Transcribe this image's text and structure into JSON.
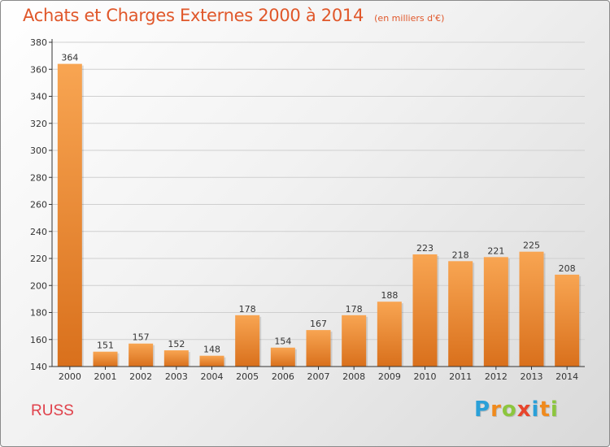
{
  "header": {
    "title": "Achats et Charges Externes 2000 à 2014",
    "subtitle": "(en milliers d'€)"
  },
  "commune": "RUSS",
  "brand": {
    "letters": [
      "P",
      "r",
      "o",
      "x",
      "i",
      "t",
      "i"
    ],
    "colors": [
      "#2aa0d8",
      "#f08a1c",
      "#8cc63e",
      "#e8452c",
      "#2aa0d8",
      "#f08a1c",
      "#8cc63e"
    ]
  },
  "colors": {
    "bar_light": "#f8a552",
    "bar_dark": "#d9701c",
    "axis": "#333333",
    "grid": "#cfcfcf"
  },
  "chart_data": {
    "type": "bar",
    "categories": [
      "2000",
      "2001",
      "2002",
      "2003",
      "2004",
      "2005",
      "2006",
      "2007",
      "2008",
      "2009",
      "2010",
      "2011",
      "2012",
      "2013",
      "2014"
    ],
    "values": [
      364,
      151,
      157,
      152,
      148,
      178,
      154,
      167,
      178,
      188,
      223,
      218,
      221,
      225,
      208
    ],
    "ylim": [
      140,
      380
    ],
    "yticks": [
      140,
      160,
      180,
      200,
      220,
      240,
      260,
      280,
      300,
      320,
      340,
      360,
      380
    ],
    "grid": true,
    "legend": false
  }
}
